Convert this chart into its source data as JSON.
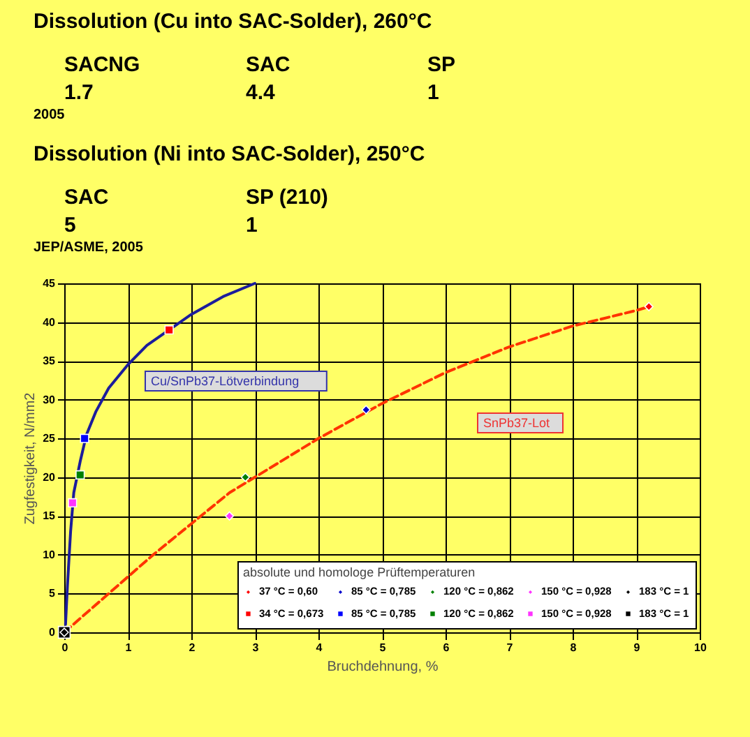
{
  "chart_data": [
    {
      "type": "other",
      "title": "Dissolution (Cu into SAC-Solder), 260°C",
      "categories": [
        "SACNG",
        "SAC",
        "SP"
      ],
      "values": [
        1.7,
        4.4,
        1
      ],
      "data_labels": true,
      "annotations": [
        "2005"
      ]
    },
    {
      "type": "other",
      "title": "Dissolution (Ni into SAC-Solder), 250°C",
      "categories": [
        "SAC",
        "SP (210)"
      ],
      "values": [
        5,
        1
      ],
      "data_labels": true,
      "annotations": [
        "JEP/ASME, 2005"
      ]
    },
    {
      "type": "scatter",
      "xlabel": "Bruchdehnung, %",
      "ylabel": "Zugfestigkeit, N/mm2",
      "legend_title": "absolute und homologe Prüftemperaturen",
      "legend": "bottom right",
      "grid": true,
      "xlim": [
        0,
        10
      ],
      "ylim": [
        0,
        45
      ],
      "xticks": [
        0,
        1,
        2,
        3,
        4,
        5,
        6,
        7,
        8,
        9,
        10
      ],
      "yticks": [
        0,
        5,
        10,
        15,
        20,
        25,
        30,
        35,
        40,
        45
      ],
      "annotations": [
        "Cu/SnPb37-Lötverbindung",
        "SnPb37-Lot"
      ],
      "series": [
        {
          "type": "line",
          "color": "#1c1c9c",
          "line_style": "solid",
          "x": [
            0.02,
            0.05,
            0.1,
            0.15,
            0.25,
            0.35,
            0.5,
            0.7,
            1,
            1.3,
            1.65,
            2,
            2.5,
            3
          ],
          "values": [
            1,
            6,
            13,
            18,
            22,
            25.5,
            28.5,
            31.5,
            34.5,
            37,
            39,
            41,
            43.3,
            45
          ]
        },
        {
          "type": "line",
          "color": "#ff3300",
          "line_style": "dashed",
          "x": [
            0,
            0.7,
            1.4,
            2,
            2.6,
            3,
            4,
            5,
            6,
            7,
            8,
            9,
            9.2
          ],
          "values": [
            0,
            5,
            10,
            14,
            18,
            20,
            25,
            29.5,
            33.5,
            36.8,
            39.5,
            41.5,
            42
          ]
        },
        {
          "name": "37 °C = 0,60",
          "color": "#ff0000",
          "marker": "diamond",
          "x": [
            9.2
          ],
          "values": [
            42
          ]
        },
        {
          "name": "85 °C = 0,785",
          "color": "#0000cc",
          "marker": "diamond",
          "x": [
            4.75
          ],
          "values": [
            28.7
          ]
        },
        {
          "name": "120 °C = 0,862",
          "color": "#008000",
          "marker": "diamond",
          "x": [
            2.85
          ],
          "values": [
            20
          ]
        },
        {
          "name": "150 °C = 0,928",
          "color": "#ff33ff",
          "marker": "diamond",
          "x": [
            2.6
          ],
          "values": [
            15
          ]
        },
        {
          "name": "183 °C = 1",
          "color": "#000000",
          "marker": "diamond",
          "x": [
            0
          ],
          "values": [
            0
          ]
        },
        {
          "name": "34 °C = 0,673",
          "color": "#ff0000",
          "marker": "square",
          "x": [
            1.65
          ],
          "values": [
            39
          ]
        },
        {
          "name": "85 °C = 0,785",
          "color": "#0000ff",
          "marker": "square",
          "x": [
            0.32
          ],
          "values": [
            25
          ]
        },
        {
          "name": "120 °C = 0,862",
          "color": "#008000",
          "marker": "square",
          "x": [
            0.25
          ],
          "values": [
            20.3
          ]
        },
        {
          "name": "150 °C = 0,928",
          "color": "#ff33ff",
          "marker": "square",
          "x": [
            0.13
          ],
          "values": [
            16.7
          ]
        },
        {
          "name": "183 °C = 1",
          "color": "#000000",
          "marker": "square",
          "x": [
            0
          ],
          "values": [
            0
          ]
        }
      ]
    }
  ]
}
